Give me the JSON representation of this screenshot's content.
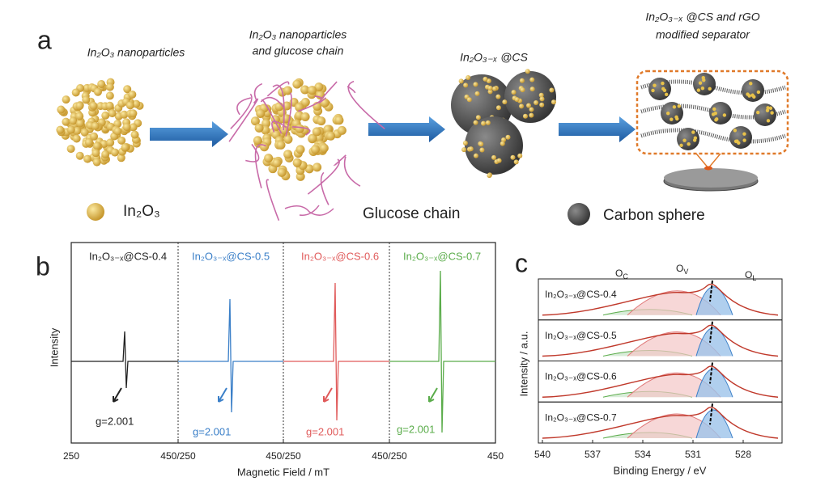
{
  "panel_a": {
    "label": "a",
    "stages": [
      [
        "In₂O₃ nanoparticles"
      ],
      [
        "In₂O₃ nanoparticles",
        "and glucose chain"
      ],
      [
        "In₂O₃₋ₓ @CS"
      ],
      [
        "In₂O₃₋ₓ @CS and rGO",
        "modified separator"
      ]
    ],
    "legend": [
      "In₂O₃",
      "Glucose chain",
      "Carbon sphere"
    ]
  },
  "panel_b": {
    "label": "b",
    "samples": [
      "In₂O₃₋ₓ@CS-0.4",
      "In₂O₃₋ₓ@CS-0.5",
      "In₂O₃₋ₓ@CS-0.6",
      "In₂O₃₋ₓ@CS-0.7"
    ],
    "g_labels": [
      "g=2.001",
      "g=2.001",
      "g=2.001",
      "g=2.001"
    ],
    "x_ticks": [
      "250",
      "450/250",
      "450/250",
      "450/250",
      "450"
    ],
    "x_label": "Magnetic Field / mT",
    "y_label": "Intensity"
  },
  "panel_c": {
    "label": "c",
    "samples": [
      "In₂O₃₋ₓ@CS-0.4",
      "In₂O₃₋ₓ@CS-0.5",
      "In₂O₃₋ₓ@CS-0.6",
      "In₂O₃₋ₓ@CS-0.7"
    ],
    "peaks": [
      {
        "symbol": "O",
        "subscript": "C"
      },
      {
        "symbol": "O",
        "subscript": "V"
      },
      {
        "symbol": "O",
        "subscript": "L"
      }
    ],
    "x_ticks": [
      "540",
      "537",
      "534",
      "531",
      "528"
    ],
    "x_label": "Binding Energy / eV",
    "y_label": "Intensity / a.u."
  }
}
